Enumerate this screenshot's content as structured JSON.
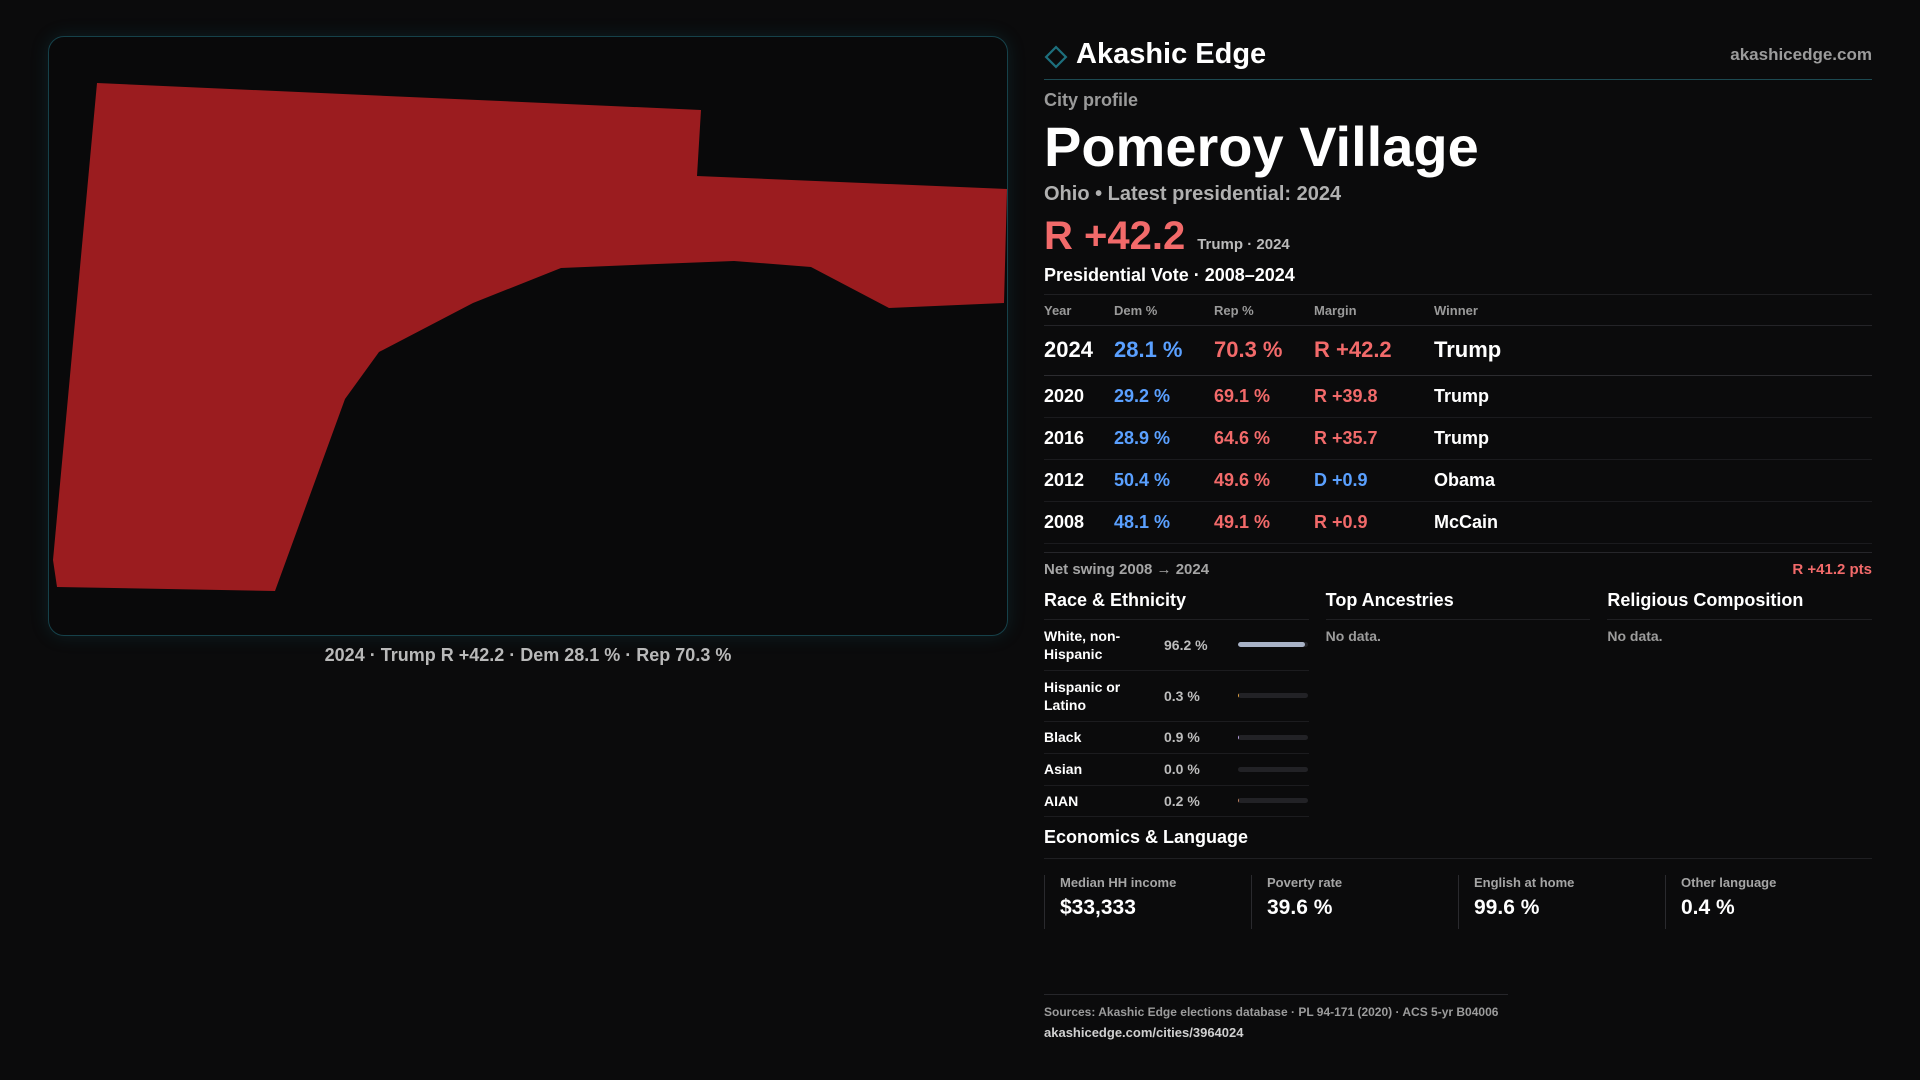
{
  "colors": {
    "rep": "#f26a6a",
    "dem": "#5aa0ff",
    "map_fill": "#9b1c1f",
    "accent": "#1d6f7d"
  },
  "map": {
    "caption": "2024 · Trump R +42.2 · Dem 28.1 % · Rep 70.3 %"
  },
  "brand": {
    "name": "Akashic Edge",
    "url": "akashicedge.com",
    "icon": "diamond-icon"
  },
  "profile": {
    "kicker": "City profile",
    "title": "Pomeroy Village",
    "subtitle": "Ohio • Latest presidential: 2024",
    "margin": "R +42.2",
    "margin_note": "Trump · 2024"
  },
  "votes": {
    "title": "Presidential Vote · 2008–2024",
    "headers": {
      "year": "Year",
      "dem": "Dem %",
      "rep": "Rep %",
      "margin": "Margin",
      "winner": "Winner"
    },
    "rows": [
      {
        "year": "2024",
        "dem": "28.1 %",
        "rep": "70.3 %",
        "margin": "R +42.2",
        "winner": "Trump",
        "party": "R"
      },
      {
        "year": "2020",
        "dem": "29.2 %",
        "rep": "69.1 %",
        "margin": "R +39.8",
        "winner": "Trump",
        "party": "R"
      },
      {
        "year": "2016",
        "dem": "28.9 %",
        "rep": "64.6 %",
        "margin": "R +35.7",
        "winner": "Trump",
        "party": "R"
      },
      {
        "year": "2012",
        "dem": "50.4 %",
        "rep": "49.6 %",
        "margin": "D +0.9",
        "winner": "Obama",
        "party": "D"
      },
      {
        "year": "2008",
        "dem": "48.1 %",
        "rep": "49.1 %",
        "margin": "R +0.9",
        "winner": "McCain",
        "party": "R"
      }
    ]
  },
  "swing": {
    "label": "Net swing 2008 → 2024",
    "value": "R +41.2 pts"
  },
  "race": {
    "title": "Race & Ethnicity",
    "rows": [
      {
        "name": "White, non-Hispanic",
        "pct": "96.2 %",
        "share": 0.962,
        "color": "#a9b3c7"
      },
      {
        "name": "Hispanic or Latino",
        "pct": "0.3 %",
        "share": 0.003,
        "color": "#e0a040"
      },
      {
        "name": "Black",
        "pct": "0.9 %",
        "share": 0.009,
        "color": "#b9a0e0"
      },
      {
        "name": "Asian",
        "pct": "0.0 %",
        "share": 0.0,
        "color": "#60c0a0"
      },
      {
        "name": "AIAN",
        "pct": "0.2 %",
        "share": 0.002,
        "color": "#c08060"
      }
    ]
  },
  "ancestries": {
    "title": "Top Ancestries",
    "empty": "No data."
  },
  "religion": {
    "title": "Religious Composition",
    "empty": "No data."
  },
  "econ": {
    "title": "Economics & Language",
    "cells": [
      {
        "label": "Median HH income",
        "value": "$33,333"
      },
      {
        "label": "Poverty rate",
        "value": "39.6 %"
      },
      {
        "label": "English at home",
        "value": "99.6 %"
      },
      {
        "label": "Other language",
        "value": "0.4 %"
      }
    ]
  },
  "footer": {
    "sources": "Sources: Akashic Edge elections database · PL 94-171 (2020) · ACS 5-yr B04006",
    "url": "akashicedge.com/cities/3964024"
  }
}
